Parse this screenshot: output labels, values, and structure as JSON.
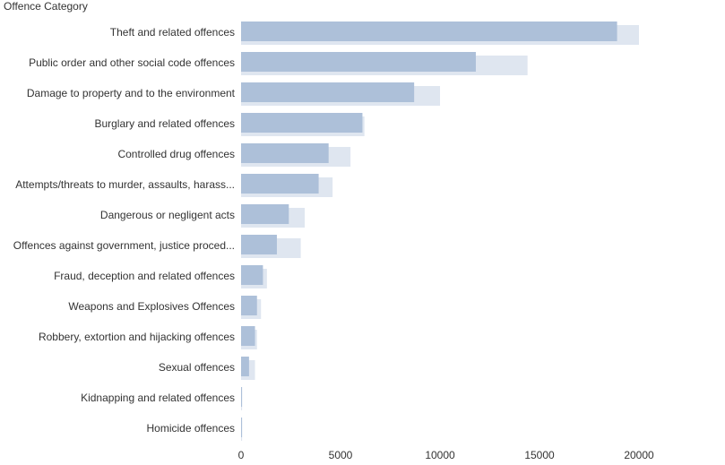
{
  "chart_data": {
    "type": "bar",
    "orientation": "horizontal",
    "y_axis_title": "Offence Category",
    "categories": [
      "Theft and related offences",
      "Public order and other social code offences",
      "Damage to property and to the environment",
      "Burglary and related offences",
      "Controlled drug offences",
      "Attempts/threats to murder, assaults, harass...",
      "Dangerous or negligent acts",
      "Offences against government, justice proced...",
      "Fraud, deception and related offences",
      "Weapons and Explosives Offences",
      "Robbery, extortion and hijacking offences",
      "Sexual offences",
      "Kidnapping and related offences",
      "Homicide offences"
    ],
    "series": [
      {
        "color": "#dfe6f0",
        "values": [
          20000,
          14400,
          10000,
          6200,
          5500,
          4600,
          3200,
          3000,
          1300,
          1000,
          800,
          700,
          50,
          50
        ]
      },
      {
        "color": "#adc0d9",
        "values": [
          18900,
          11800,
          8700,
          6100,
          4400,
          3900,
          2400,
          1800,
          1100,
          800,
          700,
          400,
          50,
          50
        ]
      }
    ],
    "xlim": [
      0,
      24000
    ],
    "xticks": [
      0,
      5000,
      10000,
      15000,
      20000
    ],
    "grid": false
  }
}
